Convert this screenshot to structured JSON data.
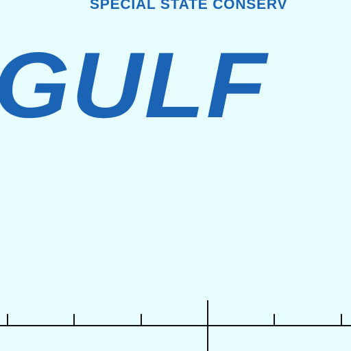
{
  "map": {
    "top_label": "SPECIAL STATE CONSERV",
    "water_label": "GULF",
    "background_color": "#e8fdfd",
    "label_color": "#1b64b5",
    "gridline_color": "#111111"
  }
}
